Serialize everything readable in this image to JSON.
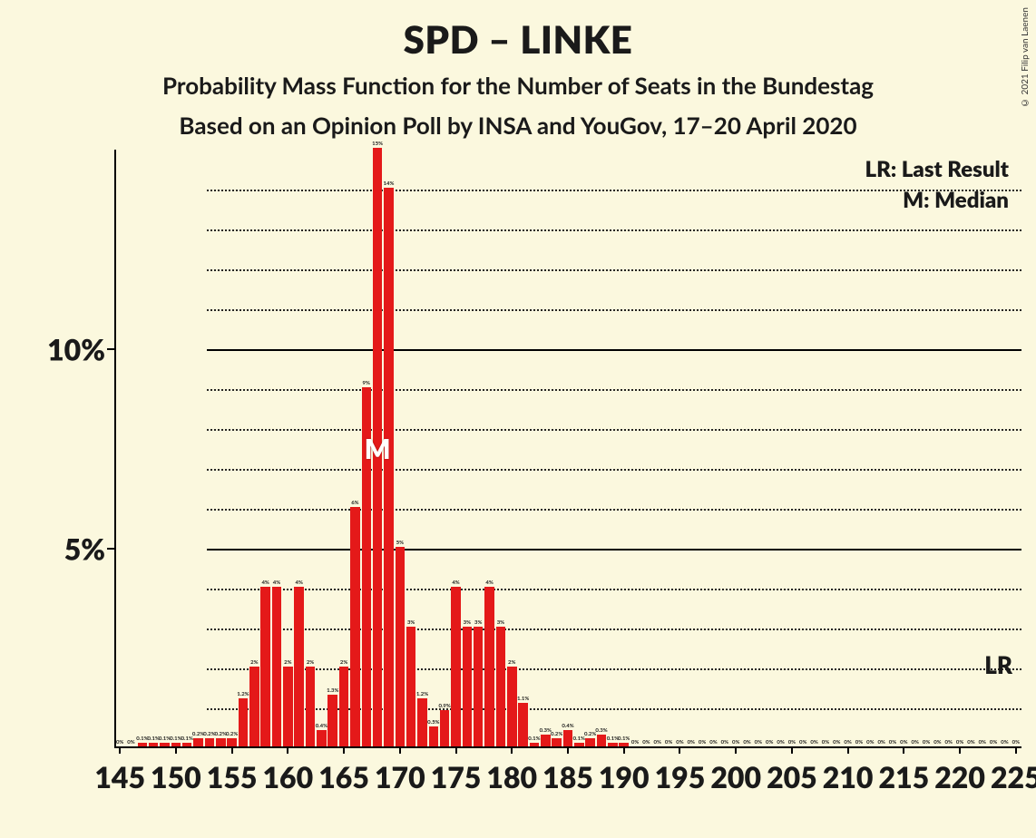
{
  "title": "SPD – LINKE",
  "subtitle1": "Probability Mass Function for the Number of Seats in the Bundestag",
  "subtitle2": "Based on an Opinion Poll by INSA and YouGov, 17–20 April 2020",
  "copyright": "© 2021 Filip van Laenen",
  "legend": {
    "lr": "LR: Last Result",
    "m": "M: Median"
  },
  "chart": {
    "type": "bar",
    "background_color": "#fbf8de",
    "bar_color": "#e41919",
    "axis_color": "#000000",
    "grid_major_color": "#000000",
    "grid_minor_color": "#000000",
    "bar_gap_ratio": 0.15,
    "title_fontsize": 42,
    "subtitle_fontsize": 26,
    "axis_label_fontsize": 32,
    "xmin": 145,
    "xmax": 225,
    "x_tick_step": 5,
    "x_ticks": [
      145,
      150,
      155,
      160,
      165,
      170,
      175,
      180,
      185,
      190,
      195,
      200,
      205,
      210,
      215,
      220,
      225
    ],
    "ymin": 0,
    "ymax": 15,
    "y_major_ticks": [
      5,
      10
    ],
    "y_major_format": "{v}%",
    "y_minor_step": 1,
    "median_x": 168,
    "median_label": "M",
    "lr_x": 222,
    "lr_y": 2.1,
    "lr_label": "LR",
    "bars": [
      {
        "x": 145,
        "v": 0,
        "l": "0%"
      },
      {
        "x": 146,
        "v": 0,
        "l": "0%"
      },
      {
        "x": 147,
        "v": 0.1,
        "l": "0.1%"
      },
      {
        "x": 148,
        "v": 0.1,
        "l": "0.1%"
      },
      {
        "x": 149,
        "v": 0.1,
        "l": "0.1%"
      },
      {
        "x": 150,
        "v": 0.1,
        "l": "0.1%"
      },
      {
        "x": 151,
        "v": 0.1,
        "l": "0.1%"
      },
      {
        "x": 152,
        "v": 0.2,
        "l": "0.2%"
      },
      {
        "x": 153,
        "v": 0.2,
        "l": "0.2%"
      },
      {
        "x": 154,
        "v": 0.2,
        "l": "0.2%"
      },
      {
        "x": 155,
        "v": 0.2,
        "l": "0.2%"
      },
      {
        "x": 156,
        "v": 1.2,
        "l": "1.2%"
      },
      {
        "x": 157,
        "v": 2,
        "l": "2%"
      },
      {
        "x": 158,
        "v": 4,
        "l": "4%"
      },
      {
        "x": 159,
        "v": 4,
        "l": "4%"
      },
      {
        "x": 160,
        "v": 2,
        "l": "2%"
      },
      {
        "x": 161,
        "v": 4,
        "l": "4%"
      },
      {
        "x": 162,
        "v": 2,
        "l": "2%"
      },
      {
        "x": 163,
        "v": 0.4,
        "l": "0.4%"
      },
      {
        "x": 164,
        "v": 1.3,
        "l": "1.3%"
      },
      {
        "x": 165,
        "v": 2,
        "l": "2%"
      },
      {
        "x": 166,
        "v": 6,
        "l": "6%"
      },
      {
        "x": 167,
        "v": 9,
        "l": "9%"
      },
      {
        "x": 168,
        "v": 15,
        "l": "15%"
      },
      {
        "x": 169,
        "v": 14,
        "l": "14%"
      },
      {
        "x": 170,
        "v": 5,
        "l": "5%"
      },
      {
        "x": 171,
        "v": 3,
        "l": "3%"
      },
      {
        "x": 172,
        "v": 1.2,
        "l": "1.2%"
      },
      {
        "x": 173,
        "v": 0.5,
        "l": "0.5%"
      },
      {
        "x": 174,
        "v": 0.9,
        "l": "0.9%"
      },
      {
        "x": 175,
        "v": 4,
        "l": "4%"
      },
      {
        "x": 176,
        "v": 3,
        "l": "3%"
      },
      {
        "x": 177,
        "v": 3,
        "l": "3%"
      },
      {
        "x": 178,
        "v": 4,
        "l": "4%"
      },
      {
        "x": 179,
        "v": 3,
        "l": "3%"
      },
      {
        "x": 180,
        "v": 2,
        "l": "2%"
      },
      {
        "x": 181,
        "v": 1.1,
        "l": "1.1%"
      },
      {
        "x": 182,
        "v": 0.1,
        "l": "0.1%"
      },
      {
        "x": 183,
        "v": 0.3,
        "l": "0.3%"
      },
      {
        "x": 184,
        "v": 0.2,
        "l": "0.2%"
      },
      {
        "x": 185,
        "v": 0.4,
        "l": "0.4%"
      },
      {
        "x": 186,
        "v": 0.1,
        "l": "0.1%"
      },
      {
        "x": 187,
        "v": 0.2,
        "l": "0.2%"
      },
      {
        "x": 188,
        "v": 0.3,
        "l": "0.3%"
      },
      {
        "x": 189,
        "v": 0.1,
        "l": "0.1%"
      },
      {
        "x": 190,
        "v": 0.1,
        "l": "0.1%"
      },
      {
        "x": 191,
        "v": 0,
        "l": "0%"
      },
      {
        "x": 192,
        "v": 0,
        "l": "0%"
      },
      {
        "x": 193,
        "v": 0,
        "l": "0%"
      },
      {
        "x": 194,
        "v": 0,
        "l": "0%"
      },
      {
        "x": 195,
        "v": 0,
        "l": "0%"
      },
      {
        "x": 196,
        "v": 0,
        "l": "0%"
      },
      {
        "x": 197,
        "v": 0,
        "l": "0%"
      },
      {
        "x": 198,
        "v": 0,
        "l": "0%"
      },
      {
        "x": 199,
        "v": 0,
        "l": "0%"
      },
      {
        "x": 200,
        "v": 0,
        "l": "0%"
      },
      {
        "x": 201,
        "v": 0,
        "l": "0%"
      },
      {
        "x": 202,
        "v": 0,
        "l": "0%"
      },
      {
        "x": 203,
        "v": 0,
        "l": "0%"
      },
      {
        "x": 204,
        "v": 0,
        "l": "0%"
      },
      {
        "x": 205,
        "v": 0,
        "l": "0%"
      },
      {
        "x": 206,
        "v": 0,
        "l": "0%"
      },
      {
        "x": 207,
        "v": 0,
        "l": "0%"
      },
      {
        "x": 208,
        "v": 0,
        "l": "0%"
      },
      {
        "x": 209,
        "v": 0,
        "l": "0%"
      },
      {
        "x": 210,
        "v": 0,
        "l": "0%"
      },
      {
        "x": 211,
        "v": 0,
        "l": "0%"
      },
      {
        "x": 212,
        "v": 0,
        "l": "0%"
      },
      {
        "x": 213,
        "v": 0,
        "l": "0%"
      },
      {
        "x": 214,
        "v": 0,
        "l": "0%"
      },
      {
        "x": 215,
        "v": 0,
        "l": "0%"
      },
      {
        "x": 216,
        "v": 0,
        "l": "0%"
      },
      {
        "x": 217,
        "v": 0,
        "l": "0%"
      },
      {
        "x": 218,
        "v": 0,
        "l": "0%"
      },
      {
        "x": 219,
        "v": 0,
        "l": "0%"
      },
      {
        "x": 220,
        "v": 0,
        "l": "0%"
      },
      {
        "x": 221,
        "v": 0,
        "l": "0%"
      },
      {
        "x": 222,
        "v": 0,
        "l": "0%"
      },
      {
        "x": 223,
        "v": 0,
        "l": "0%"
      },
      {
        "x": 224,
        "v": 0,
        "l": "0%"
      },
      {
        "x": 225,
        "v": 0,
        "l": "0%"
      }
    ]
  }
}
